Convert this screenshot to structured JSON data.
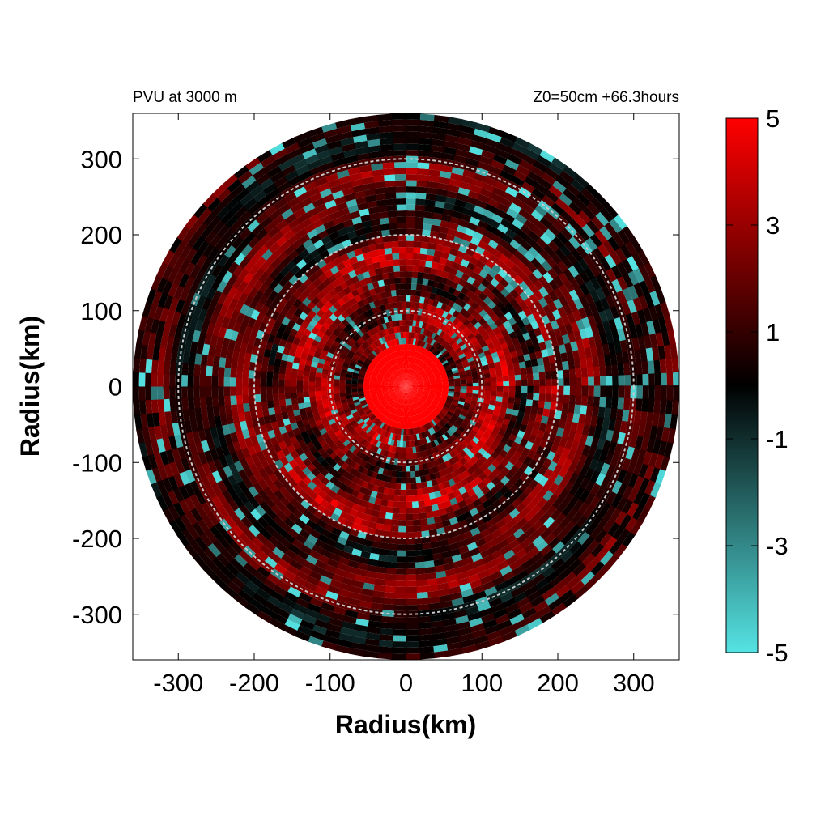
{
  "chart_data": {
    "type": "heatmap",
    "title_left": "PVU at  3000 m",
    "title_right": "Z0=50cm  +66.3hours",
    "xlabel": "Radius(km)",
    "ylabel": "Radius(km)",
    "xlim": [
      -360,
      360
    ],
    "ylim": [
      -360,
      360
    ],
    "xticks": [
      -300,
      -200,
      -100,
      0,
      100,
      200,
      300
    ],
    "yticks": [
      300,
      200,
      100,
      0,
      -100,
      -200,
      -300
    ],
    "data_radius_km": 360,
    "reference_circles_km": [
      100,
      200,
      300
    ],
    "colorbar": {
      "min": -5,
      "max": 5,
      "labels": [
        "5",
        "3",
        "1",
        "-1",
        "-3",
        "-5"
      ],
      "low_color": "#55e3e3",
      "mid_color": "#000000",
      "high_color": "#ff0000"
    },
    "core": {
      "radius_km": 55,
      "value": 5
    }
  }
}
